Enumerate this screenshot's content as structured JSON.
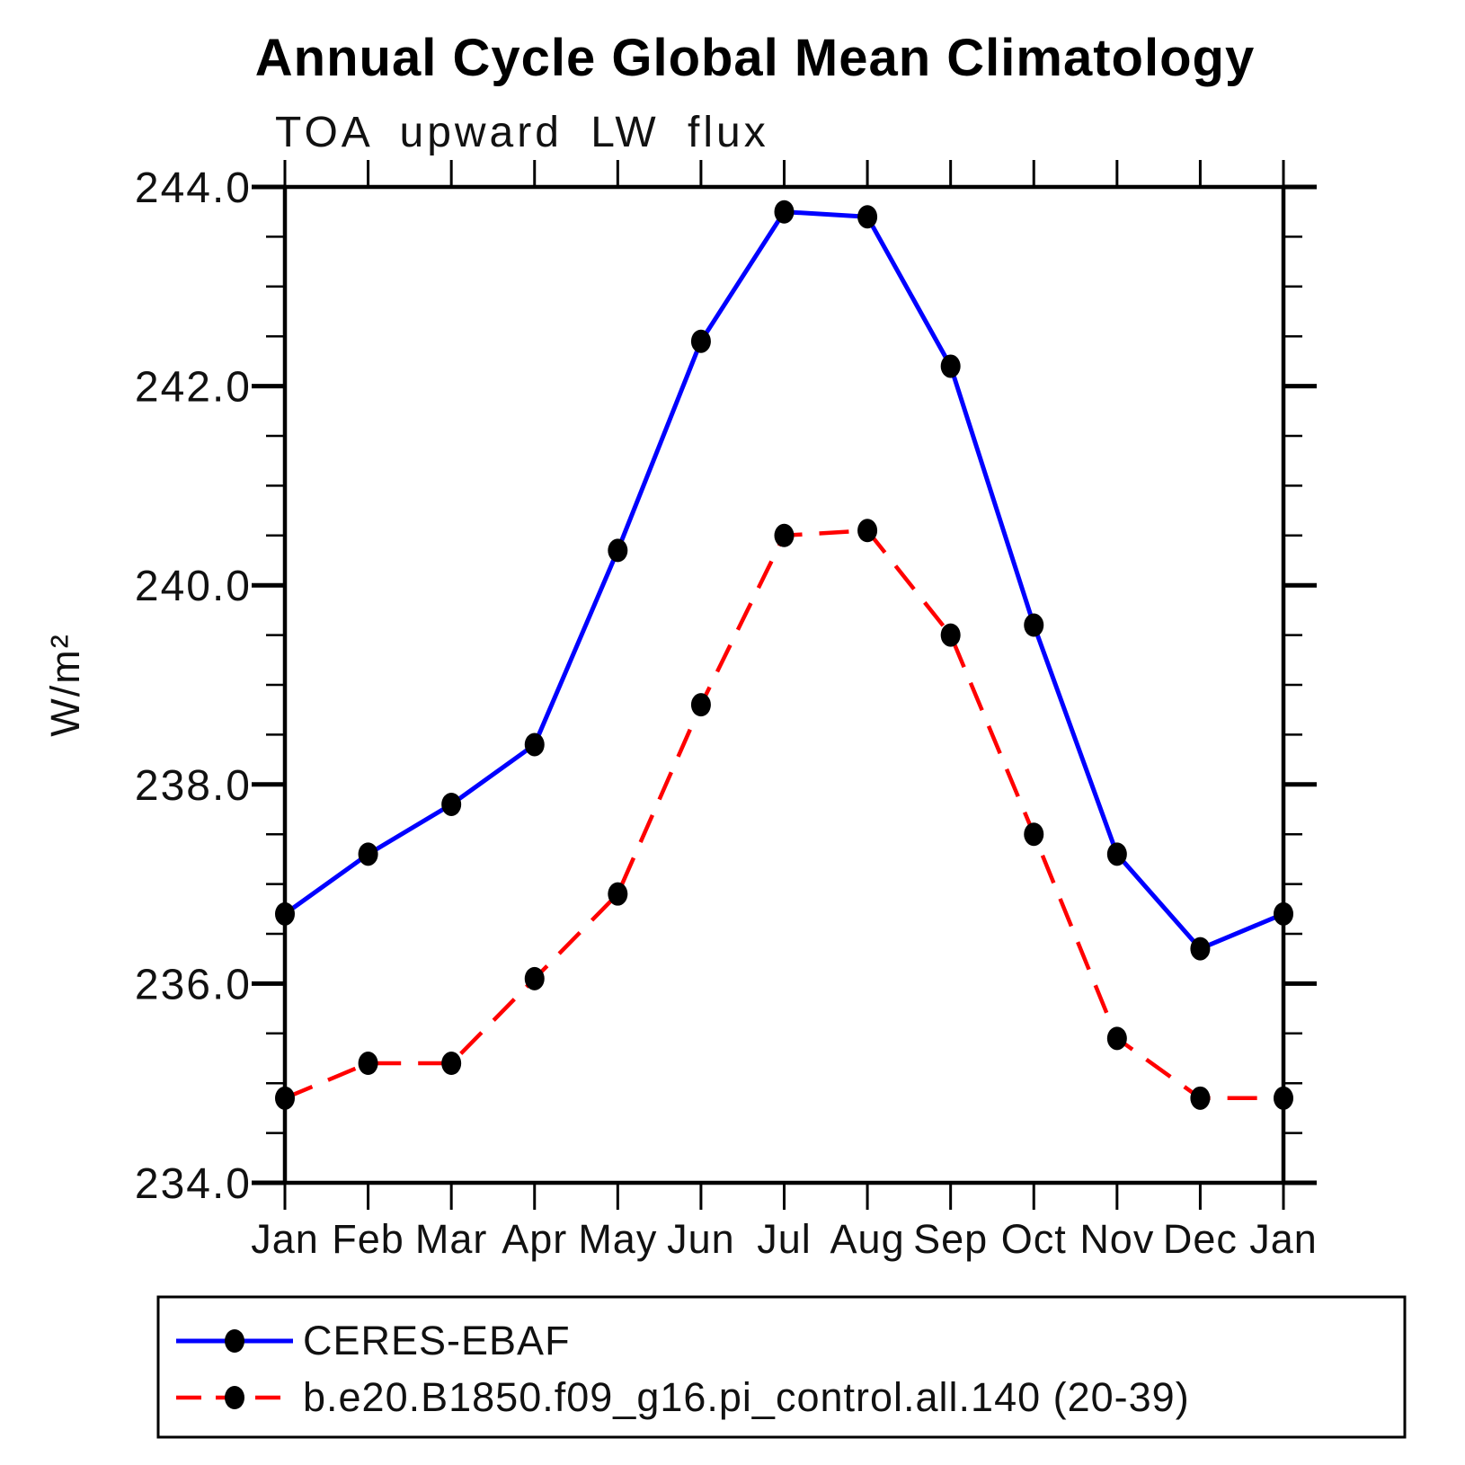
{
  "title": "Annual Cycle Global Mean Climatology",
  "subtitle": "TOA upward LW flux",
  "y_axis": {
    "label": "W/m²",
    "min": 234.0,
    "max": 244.0,
    "major_step": 2.0,
    "minor_step": 0.5,
    "tick_labels": [
      "244.0",
      "242.0",
      "240.0",
      "238.0",
      "236.0",
      "234.0"
    ]
  },
  "x_axis": {
    "tick_labels": [
      "Jan",
      "Feb",
      "Mar",
      "Apr",
      "May",
      "Jun",
      "Jul",
      "Aug",
      "Sep",
      "Oct",
      "Nov",
      "Dec",
      "Jan"
    ]
  },
  "legend": {
    "entries": [
      {
        "label": "CERES-EBAF",
        "color": "#0000ff",
        "style": "solid",
        "marker": "filled-circle"
      },
      {
        "label": "b.e20.B1850.f09_g16.pi_control.all.140 (20-39)",
        "color": "#ff0000",
        "style": "dashed",
        "marker": "filled-circle"
      }
    ]
  },
  "colors": {
    "obs_line": "#0000ff",
    "model_line": "#ff0000",
    "marker": "#000000",
    "axis": "#000000"
  },
  "chart_data": {
    "type": "line",
    "title": "Annual Cycle Global Mean Climatology",
    "subtitle": "TOA upward LW flux",
    "xlabel": "",
    "ylabel": "W/m²",
    "ylim": [
      234.0,
      244.0
    ],
    "y_major_step": 2.0,
    "y_minor_step": 0.5,
    "grid": false,
    "legend_position": "bottom",
    "categories": [
      "Jan",
      "Feb",
      "Mar",
      "Apr",
      "May",
      "Jun",
      "Jul",
      "Aug",
      "Sep",
      "Oct",
      "Nov",
      "Dec",
      "Jan"
    ],
    "series": [
      {
        "name": "CERES-EBAF",
        "color": "#0000ff",
        "line_style": "solid",
        "marker": "filled-circle",
        "values": [
          236.7,
          237.3,
          237.8,
          238.4,
          240.35,
          242.45,
          243.75,
          243.7,
          242.2,
          239.6,
          237.3,
          236.35,
          236.7
        ]
      },
      {
        "name": "b.e20.B1850.f09_g16.pi_control.all.140 (20-39)",
        "color": "#ff0000",
        "line_style": "dashed",
        "marker": "filled-circle",
        "values": [
          234.85,
          235.2,
          235.2,
          236.05,
          236.9,
          238.8,
          240.5,
          240.55,
          239.5,
          237.5,
          235.45,
          234.85,
          234.85
        ]
      }
    ]
  }
}
